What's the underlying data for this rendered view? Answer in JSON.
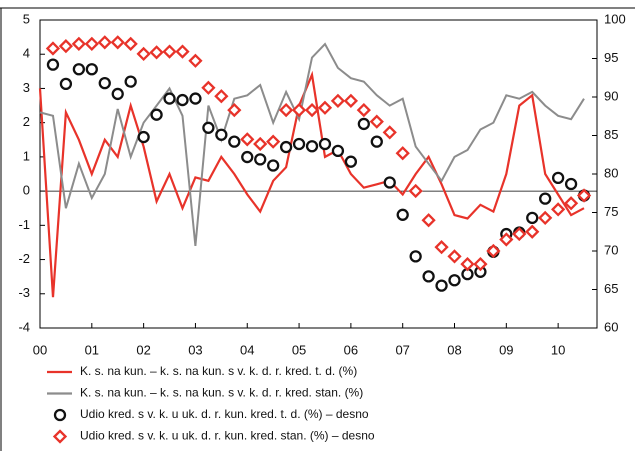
{
  "chart_data": {
    "type": "line",
    "xlim": [
      2000,
      2010.75
    ],
    "xticks": [
      {
        "value": 2000,
        "label": "00"
      },
      {
        "value": 2001,
        "label": "01"
      },
      {
        "value": 2002,
        "label": "02"
      },
      {
        "value": 2003,
        "label": "03"
      },
      {
        "value": 2004,
        "label": "04"
      },
      {
        "value": 2005,
        "label": "05"
      },
      {
        "value": 2006,
        "label": "06"
      },
      {
        "value": 2007,
        "label": "07"
      },
      {
        "value": 2008,
        "label": "08"
      },
      {
        "value": 2009,
        "label": "09"
      },
      {
        "value": 2010,
        "label": "10"
      }
    ],
    "ylim": [
      -4,
      5
    ],
    "yticks": [
      -4,
      -3,
      -2,
      -1,
      0,
      1,
      2,
      3,
      4,
      5
    ],
    "y2lim": [
      60,
      100
    ],
    "y2ticks": [
      60,
      65,
      70,
      75,
      80,
      85,
      90,
      95,
      100
    ],
    "series": [
      {
        "name": "K. s. na kun. – k. s. na kun. s v. k. d. r. kred. t. d. (%)",
        "color": "#e8332a",
        "marker": "line",
        "x": [
          2000,
          2000.25,
          2000.5,
          2000.75,
          2001,
          2001.25,
          2001.5,
          2001.75,
          2002,
          2002.25,
          2002.5,
          2002.75,
          2003,
          2003.25,
          2003.5,
          2003.75,
          2004,
          2004.25,
          2004.5,
          2004.75,
          2005,
          2005.25,
          2005.5,
          2005.75,
          2006,
          2006.25,
          2006.5,
          2006.75,
          2007,
          2007.25,
          2007.5,
          2007.75,
          2008,
          2008.25,
          2008.5,
          2008.75,
          2009,
          2009.25,
          2009.5,
          2009.75,
          2010,
          2010.25,
          2010.5
        ],
        "values": [
          3.0,
          -3.1,
          2.3,
          1.5,
          0.5,
          1.5,
          1.0,
          2.5,
          1.3,
          -0.3,
          0.5,
          -0.5,
          0.4,
          0.3,
          1.0,
          0.5,
          -0.1,
          -0.6,
          0.3,
          0.7,
          2.5,
          3.4,
          1.0,
          1.2,
          0.5,
          0.1,
          0.2,
          0.3,
          -0.1,
          0.5,
          1.0,
          0.2,
          -0.7,
          -0.8,
          -0.4,
          -0.6,
          0.5,
          2.5,
          2.8,
          0.5,
          -0.1,
          -0.7,
          -0.5
        ]
      },
      {
        "name": "K. s. na kun. – k. s. na kun. s v. k. d. r. kred. stan. (%)",
        "color": "#8c8c8c",
        "marker": "line",
        "x": [
          2000,
          2000.25,
          2000.5,
          2000.75,
          2001,
          2001.25,
          2001.5,
          2001.75,
          2002,
          2002.25,
          2002.5,
          2002.75,
          2003,
          2003.25,
          2003.5,
          2003.75,
          2004,
          2004.25,
          2004.5,
          2004.75,
          2005,
          2005.25,
          2005.5,
          2005.75,
          2006,
          2006.25,
          2006.5,
          2006.75,
          2007,
          2007.25,
          2007.5,
          2007.75,
          2008,
          2008.25,
          2008.5,
          2008.75,
          2009,
          2009.25,
          2009.5,
          2009.75,
          2010,
          2010.25,
          2010.5
        ],
        "values": [
          2.3,
          2.2,
          -0.5,
          0.8,
          -0.2,
          0.5,
          2.4,
          1.0,
          2.0,
          2.5,
          3.0,
          2.2,
          -1.6,
          2.5,
          1.5,
          2.7,
          2.8,
          3.1,
          2.0,
          2.9,
          2.1,
          3.9,
          4.3,
          3.6,
          3.3,
          3.2,
          2.8,
          2.5,
          2.7,
          1.3,
          0.8,
          0.3,
          1.0,
          1.2,
          1.8,
          2.0,
          2.8,
          2.7,
          2.9,
          2.5,
          2.2,
          2.1,
          2.7
        ]
      },
      {
        "name": "Udio kred. s v. k. u uk. d. r. kun. kred. t. d. (%) – desno",
        "color": "#111111",
        "marker": "circle",
        "axis": "y2",
        "x": [
          2000.25,
          2000.5,
          2000.75,
          2001,
          2001.25,
          2001.5,
          2001.75,
          2002,
          2002.25,
          2002.5,
          2002.75,
          2003,
          2003.25,
          2003.5,
          2003.75,
          2004,
          2004.25,
          2004.5,
          2004.75,
          2005,
          2005.25,
          2005.5,
          2005.75,
          2006,
          2006.25,
          2006.5,
          2006.75,
          2007,
          2007.25,
          2007.5,
          2007.75,
          2008,
          2008.25,
          2008.5,
          2008.75,
          2009,
          2009.25,
          2009.5,
          2009.75,
          2010,
          2010.25,
          2010.5
        ],
        "values": [
          94.2,
          91.7,
          93.6,
          93.6,
          91.8,
          90.4,
          92.0,
          84.8,
          87.7,
          89.8,
          89.6,
          89.8,
          86.0,
          85.1,
          84.2,
          82.2,
          81.9,
          81.1,
          83.5,
          83.9,
          83.6,
          83.9,
          83.0,
          81.6,
          86.5,
          84.2,
          78.9,
          74.7,
          69.3,
          66.7,
          65.5,
          66.2,
          67.0,
          67.3,
          69.9,
          72.2,
          72.4,
          74.3,
          76.8,
          79.5,
          78.7,
          77.2
        ]
      },
      {
        "name": "Udio kred. s v. k. u uk. d. r. kun. kred. stan. (%) – desno",
        "color": "#e8332a",
        "marker": "diamond",
        "axis": "y2",
        "x": [
          2000.25,
          2000.5,
          2000.75,
          2001,
          2001.25,
          2001.5,
          2001.75,
          2002,
          2002.25,
          2002.5,
          2002.75,
          2003,
          2003.25,
          2003.5,
          2003.75,
          2004,
          2004.25,
          2004.5,
          2004.75,
          2005,
          2005.25,
          2005.5,
          2005.75,
          2006,
          2006.25,
          2006.5,
          2006.75,
          2007,
          2007.25,
          2007.5,
          2007.75,
          2008,
          2008.25,
          2008.5,
          2008.75,
          2009,
          2009.25,
          2009.5,
          2009.75,
          2010,
          2010.25,
          2010.5
        ],
        "values": [
          96.3,
          96.6,
          96.9,
          96.9,
          97.1,
          97.1,
          96.9,
          95.6,
          95.8,
          95.9,
          95.9,
          94.7,
          91.2,
          90.1,
          88.3,
          84.5,
          83.9,
          84.2,
          88.3,
          88.3,
          88.3,
          88.6,
          89.5,
          89.5,
          88.3,
          86.8,
          85.4,
          82.7,
          77.8,
          74.0,
          70.5,
          69.3,
          68.3,
          68.3,
          70.0,
          71.5,
          72.2,
          72.5,
          74.3,
          75.4,
          76.2,
          77.2
        ]
      }
    ]
  }
}
